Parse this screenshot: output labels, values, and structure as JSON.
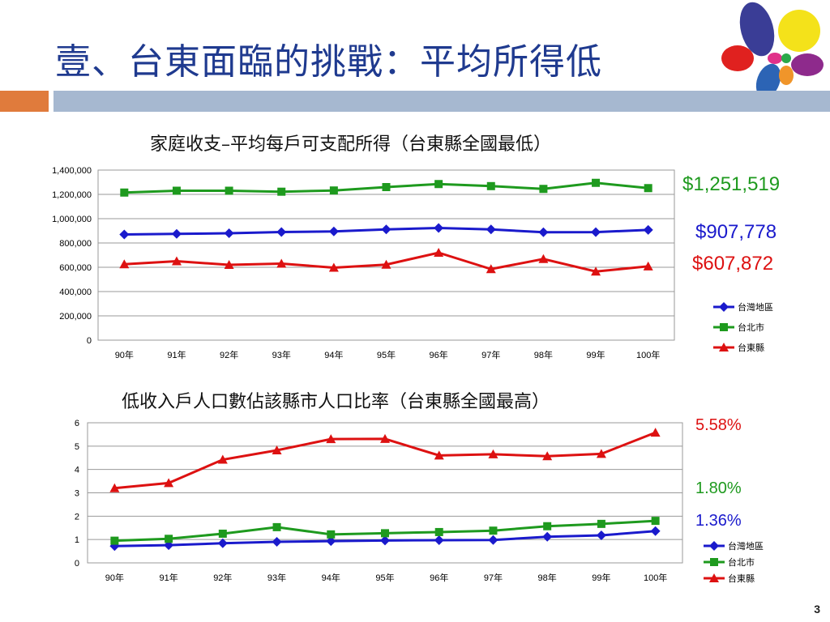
{
  "slide": {
    "title": "壹、台東面臨的挑戰：平均所得低",
    "page_number": "3"
  },
  "charts_meta": [
    {
      "title": "家庭收支–平均每戶可支配所得（台東縣全國最低）",
      "callouts": [
        {
          "text": "$1,251,519",
          "color": "#1e9a1e"
        },
        {
          "text": "$907,778",
          "color": "#1a1acc"
        },
        {
          "text": "$607,872",
          "color": "#dd1111"
        }
      ]
    },
    {
      "title": "低收入戶人口數佔該縣市人口比率（台東縣全國最高）",
      "callouts": [
        {
          "text": "5.58%",
          "color": "#dd1111"
        },
        {
          "text": "1.80%",
          "color": "#1e9a1e"
        },
        {
          "text": "1.36%",
          "color": "#1a1acc"
        }
      ]
    }
  ],
  "chart_data": [
    {
      "type": "line",
      "categories": [
        "90年",
        "91年",
        "92年",
        "93年",
        "94年",
        "95年",
        "96年",
        "97年",
        "98年",
        "99年",
        "100年"
      ],
      "ylim": [
        0,
        1400000
      ],
      "yticks": [
        "0",
        "200,000",
        "400,000",
        "600,000",
        "800,000",
        "1,000,000",
        "1,200,000",
        "1,400,000"
      ],
      "grid": true,
      "legend": "right",
      "series": [
        {
          "name": "台灣地區",
          "color": "#1a1acc",
          "marker": "diamond",
          "values": [
            870000,
            875000,
            880000,
            890000,
            895000,
            912000,
            923000,
            912000,
            888000,
            889000,
            907778
          ]
        },
        {
          "name": "台北市",
          "color": "#1e9a1e",
          "marker": "square",
          "values": [
            1215000,
            1230000,
            1230000,
            1222000,
            1232000,
            1260000,
            1285000,
            1268000,
            1245000,
            1295000,
            1251519
          ]
        },
        {
          "name": "台東縣",
          "color": "#dd1111",
          "marker": "triangle",
          "values": [
            625000,
            650000,
            620000,
            630000,
            597000,
            622000,
            720000,
            585000,
            668000,
            565000,
            607872
          ]
        }
      ]
    },
    {
      "type": "line",
      "categories": [
        "90年",
        "91年",
        "92年",
        "93年",
        "94年",
        "95年",
        "96年",
        "97年",
        "98年",
        "99年",
        "100年"
      ],
      "ylim": [
        0,
        6
      ],
      "yticks": [
        "0",
        "1",
        "2",
        "3",
        "4",
        "5",
        "6"
      ],
      "grid": true,
      "legend": "right",
      "series": [
        {
          "name": "台灣地區",
          "color": "#1a1acc",
          "marker": "diamond",
          "values": [
            0.72,
            0.76,
            0.84,
            0.9,
            0.93,
            0.96,
            0.97,
            0.98,
            1.12,
            1.18,
            1.36
          ]
        },
        {
          "name": "台北市",
          "color": "#1e9a1e",
          "marker": "square",
          "values": [
            0.95,
            1.03,
            1.25,
            1.53,
            1.22,
            1.27,
            1.32,
            1.38,
            1.57,
            1.67,
            1.8
          ]
        },
        {
          "name": "台東縣",
          "color": "#dd1111",
          "marker": "triangle",
          "values": [
            3.2,
            3.42,
            4.42,
            4.82,
            5.3,
            5.31,
            4.6,
            4.65,
            4.57,
            4.67,
            5.58
          ]
        }
      ]
    }
  ]
}
